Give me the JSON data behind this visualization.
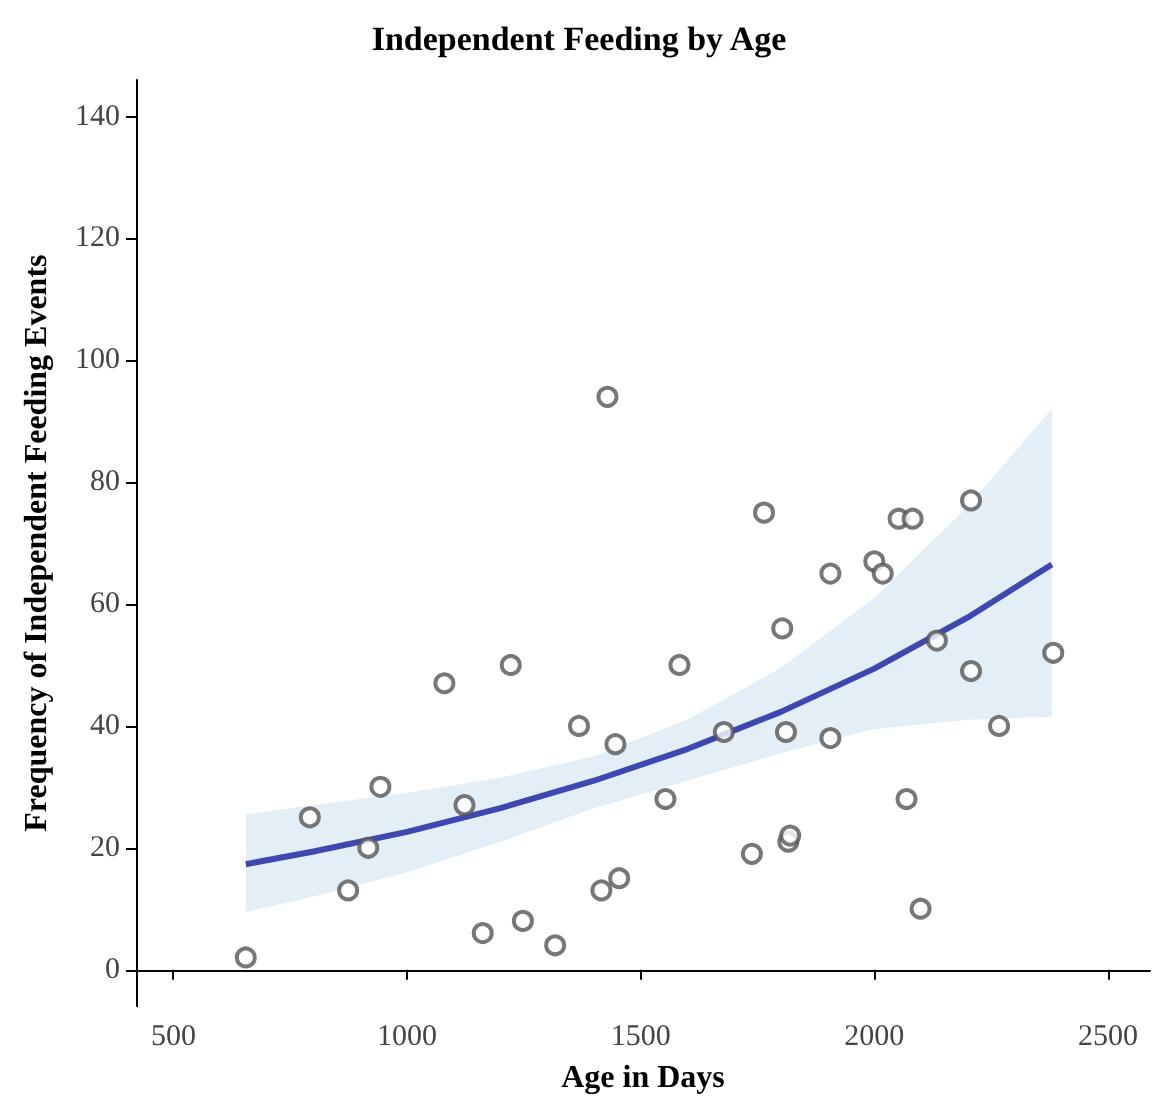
{
  "chart_data": {
    "type": "scatter",
    "title": "Independent Feeding by Age",
    "xlabel": "Age in Days",
    "ylabel": "Frequency of Independent Feeding Events",
    "xlim": [
      420,
      2590
    ],
    "xticks": [
      500,
      1000,
      1500,
      2000,
      2500
    ],
    "ylim": [
      -6,
      146
    ],
    "yticks": [
      0,
      20,
      40,
      60,
      80,
      100,
      120,
      140
    ],
    "grid": false,
    "series": [
      {
        "marker": "circle",
        "color": "#555555",
        "x": [
          655,
          792,
          874,
          917,
          943,
          1080,
          1123,
          1162,
          1222,
          1248,
          1317,
          1368,
          1416,
          1429,
          1446,
          1454,
          1553,
          1583,
          1678,
          1738,
          1764,
          1803,
          1811,
          1816,
          1820,
          1906,
          1906,
          2000,
          2018,
          2052,
          2082,
          2069,
          2099,
          2134,
          2207,
          2207,
          2267,
          2383
        ],
        "values": [
          2,
          25,
          13,
          20,
          30,
          47,
          27,
          6,
          50,
          8,
          4,
          40,
          13,
          94,
          37,
          15,
          28,
          50,
          39,
          19,
          75,
          56,
          39,
          21,
          22,
          65,
          38,
          67,
          65,
          74,
          74,
          28,
          10,
          54,
          77,
          49,
          40,
          52
        ]
      },
      {
        "type": "line",
        "marker": "none",
        "line_style": "solid",
        "color": "#3f48b0",
        "x": [
          655,
          800,
          1000,
          1200,
          1400,
          1600,
          1800,
          2000,
          2200,
          2380
        ],
        "values": [
          17.3,
          19.4,
          22.6,
          26.5,
          31.0,
          36.2,
          42.3,
          49.4,
          57.8,
          66.5
        ],
        "lower": [
          9.5,
          12,
          16,
          21,
          26.5,
          31,
          35.5,
          39.5,
          41,
          41.5
        ],
        "upper": [
          25.5,
          27,
          29,
          31.5,
          35,
          41,
          49.5,
          61,
          76,
          92
        ]
      }
    ]
  }
}
